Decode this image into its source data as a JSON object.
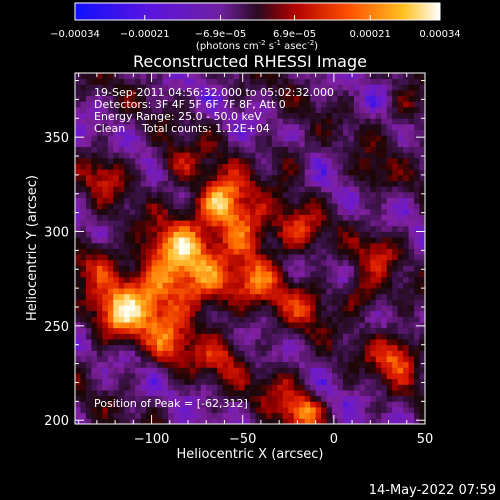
{
  "chart_data": {
    "type": "heatmap",
    "title": "Reconstructed RHESSI Image",
    "xlabel": "Heliocentric X (arcsec)",
    "ylabel": "Heliocentric Y (arcsec)",
    "xlim": [
      -142,
      50
    ],
    "ylim": [
      198,
      384
    ],
    "xticks": [
      -100,
      -50,
      0,
      50
    ],
    "yticks": [
      200,
      250,
      300,
      350
    ],
    "xtick_labels": [
      "−100",
      "−50",
      "0",
      "50"
    ],
    "ytick_labels": [
      "200",
      "250",
      "300",
      "350"
    ],
    "colorbar": {
      "label_line1": "(photons cm",
      "label_sup1": "-2",
      "label_mid": " s",
      "label_sup2": "-1",
      "label_mid2": " asec",
      "label_sup3": "-2",
      "label_end": ")",
      "range": [
        -0.00034,
        0.00034
      ],
      "ticks": [
        -0.00034,
        -0.00021,
        -6.9e-05,
        6.9e-05,
        0.00021,
        0.00034
      ],
      "tick_labels_bottom": [
        "−0.00034",
        "−0.00021",
        "0.00021",
        "0.00034"
      ],
      "tick_labels_top": [
        "−6.9e−05",
        "6.9e−05"
      ]
    },
    "colormap": [
      "#1010ff",
      "#6a19d0",
      "#8020a0",
      "#3a1248",
      "#1a0606",
      "#a00000",
      "#e02000",
      "#ff7000",
      "#ffc030",
      "#fffff0"
    ],
    "peak": [
      -62,
      312
    ],
    "sources": [
      {
        "x": -62,
        "y": 316,
        "amp": 1.0,
        "r": 10
      },
      {
        "x": -48,
        "y": 300,
        "amp": 0.7,
        "r": 10
      },
      {
        "x": -85,
        "y": 290,
        "amp": 0.7,
        "r": 12
      },
      {
        "x": -100,
        "y": 268,
        "amp": 0.75,
        "r": 14
      },
      {
        "x": -120,
        "y": 255,
        "amp": 0.65,
        "r": 10
      },
      {
        "x": -70,
        "y": 270,
        "amp": 0.55,
        "r": 12
      },
      {
        "x": -40,
        "y": 275,
        "amp": 0.55,
        "r": 10
      },
      {
        "x": -20,
        "y": 300,
        "amp": 0.5,
        "r": 9
      },
      {
        "x": -15,
        "y": 262,
        "amp": 0.45,
        "r": 9
      },
      {
        "x": -90,
        "y": 240,
        "amp": 0.45,
        "r": 10
      },
      {
        "x": -60,
        "y": 235,
        "amp": 0.45,
        "r": 9
      },
      {
        "x": 35,
        "y": 235,
        "amp": 0.7,
        "r": 9
      },
      {
        "x": 15,
        "y": 265,
        "amp": 0.5,
        "r": 8
      },
      {
        "x": 25,
        "y": 290,
        "amp": 0.4,
        "r": 8
      },
      {
        "x": -30,
        "y": 220,
        "amp": 0.4,
        "r": 8
      },
      {
        "x": -17,
        "y": 205,
        "amp": 0.8,
        "r": 7
      },
      {
        "x": -125,
        "y": 330,
        "amp": 0.45,
        "r": 8
      },
      {
        "x": -85,
        "y": 335,
        "amp": 0.45,
        "r": 8
      },
      {
        "x": -25,
        "y": 340,
        "amp": 0.35,
        "r": 7
      },
      {
        "x": 20,
        "y": 330,
        "amp": 0.35,
        "r": 7
      },
      {
        "x": 40,
        "y": 365,
        "amp": 0.35,
        "r": 7
      },
      {
        "x": -130,
        "y": 285,
        "amp": 0.45,
        "r": 9
      }
    ],
    "annotations": {
      "time_range": "19-Sep-2011 04:56:32.000 to 05:02:32.000",
      "detectors": "Detectors: 3F 4F 5F 6F 7F 8F, Att 0",
      "energy": "Energy Range: 25.0 - 50.0 keV",
      "method": "Clean",
      "counts": "Total counts: 1.12E+04",
      "peak_text": "Position of Peak = [-62,312]"
    },
    "grid": false
  },
  "footer": {
    "timestamp": "14-May-2022 07:59"
  }
}
